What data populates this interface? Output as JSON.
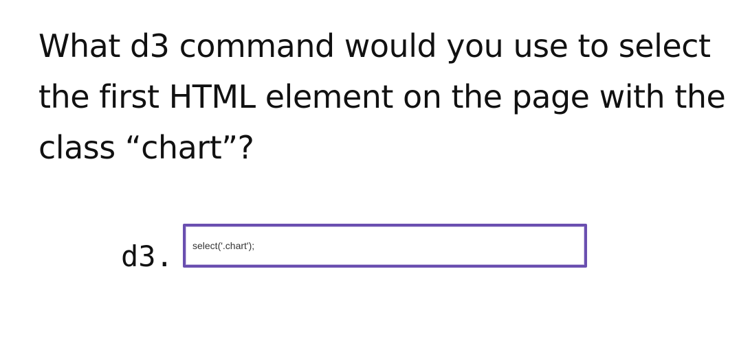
{
  "question": {
    "text": "What d3 command would you use to select the first HTML element on the page with the class “chart”?"
  },
  "answer": {
    "prefix": "d3.",
    "value": "select('.chart');"
  },
  "colors": {
    "input_border": "#6a4fb0",
    "text": "#111111"
  }
}
